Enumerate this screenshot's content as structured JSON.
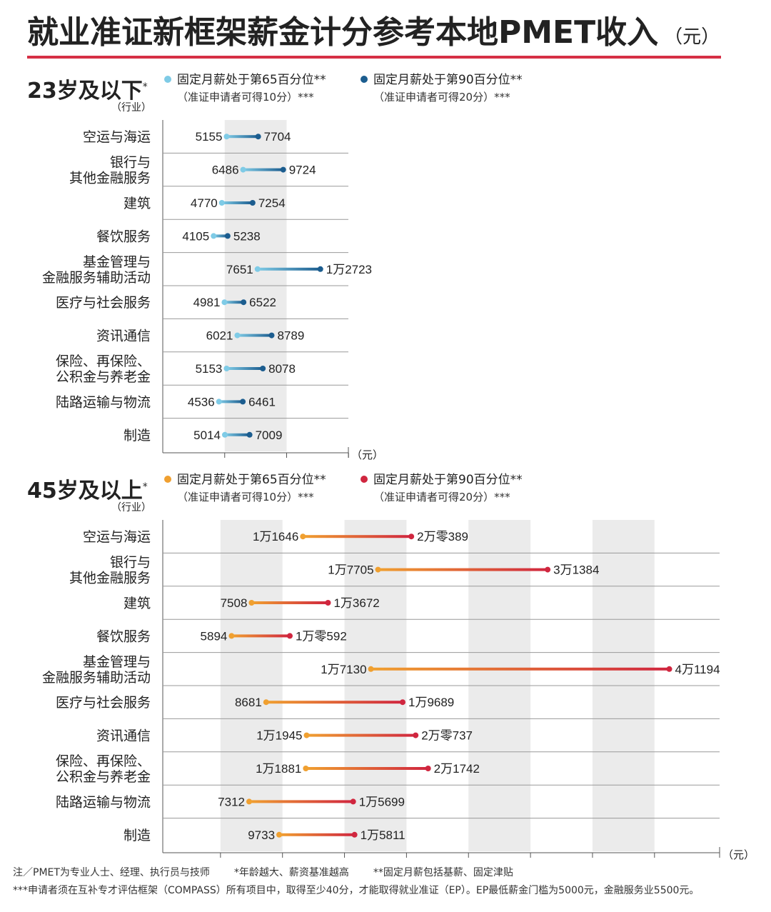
{
  "title": "就业准证新框架薪金计分参考本地PMET收入",
  "title_unit": "（元）",
  "colors": {
    "accent_red": "#d62f45",
    "young_p65": "#7fcbe6",
    "young_p90": "#1c5d8f",
    "senior_p65": "#f0a030",
    "senior_p90": "#d0263f",
    "shade": "#ebebeb",
    "grid": "#999999"
  },
  "legend_young": {
    "p65_label": "固定月薪处于第65百分位**",
    "p65_note": "（准证申请者可得10分）***",
    "p90_label": "固定月薪处于第90百分位**",
    "p90_note": "（准证申请者可得20分）***"
  },
  "legend_senior": {
    "p65_label": "固定月薪处于第65百分位**",
    "p65_note": "（准证申请者可得10分）***",
    "p90_label": "固定月薪处于第90百分位**",
    "p90_note": "（准证申请者可得20分）***"
  },
  "chart_data": [
    {
      "type": "dumbbell",
      "title": "23岁及以下",
      "title_mark": "*",
      "ylabel": "（行业）",
      "xlabel": "（元）",
      "series_names": [
        "固定月薪处于第65百分位",
        "固定月薪处于第90百分位"
      ],
      "rows": [
        {
          "industry": [
            "空运与海运"
          ],
          "p65": 5155,
          "p90": 7704,
          "p65_label": "5155",
          "p90_label": "7704"
        },
        {
          "industry": [
            "银行与",
            "其他金融服务"
          ],
          "p65": 6486,
          "p90": 9724,
          "p65_label": "6486",
          "p90_label": "9724"
        },
        {
          "industry": [
            "建筑"
          ],
          "p65": 4770,
          "p90": 7254,
          "p65_label": "4770",
          "p90_label": "7254"
        },
        {
          "industry": [
            "餐饮服务"
          ],
          "p65": 4105,
          "p90": 5238,
          "p65_label": "4105",
          "p90_label": "5238"
        },
        {
          "industry": [
            "基金管理与",
            "金融服务辅助活动"
          ],
          "p65": 7651,
          "p90": 12723,
          "p65_label": "7651",
          "p90_label": "1万2723"
        },
        {
          "industry": [
            "医疗与社会服务"
          ],
          "p65": 4981,
          "p90": 6522,
          "p65_label": "4981",
          "p90_label": "6522"
        },
        {
          "industry": [
            "资讯通信"
          ],
          "p65": 6021,
          "p90": 8789,
          "p65_label": "6021",
          "p90_label": "8789"
        },
        {
          "industry": [
            "保险、再保险、",
            "公积金与养老金"
          ],
          "p65": 5153,
          "p90": 8078,
          "p65_label": "5153",
          "p90_label": "8078"
        },
        {
          "industry": [
            "陆路运输与物流"
          ],
          "p65": 4536,
          "p90": 6461,
          "p65_label": "4536",
          "p90_label": "6461"
        },
        {
          "industry": [
            "制造"
          ],
          "p65": 5014,
          "p90": 7009,
          "p65_label": "5014",
          "p90_label": "7009"
        }
      ]
    },
    {
      "type": "dumbbell",
      "title": "45岁及以上",
      "title_mark": "*",
      "ylabel": "（行业）",
      "xlabel": "（元）",
      "series_names": [
        "固定月薪处于第65百分位",
        "固定月薪处于第90百分位"
      ],
      "rows": [
        {
          "industry": [
            "空运与海运"
          ],
          "p65": 11646,
          "p90": 20389,
          "p65_label": "1万1646",
          "p90_label": "2万零389"
        },
        {
          "industry": [
            "银行与",
            "其他金融服务"
          ],
          "p65": 17705,
          "p90": 31384,
          "p65_label": "1万7705",
          "p90_label": "3万1384"
        },
        {
          "industry": [
            "建筑"
          ],
          "p65": 7508,
          "p90": 13672,
          "p65_label": "7508",
          "p90_label": "1万3672"
        },
        {
          "industry": [
            "餐饮服务"
          ],
          "p65": 5894,
          "p90": 10592,
          "p65_label": "5894",
          "p90_label": "1万零592"
        },
        {
          "industry": [
            "基金管理与",
            "金融服务辅助活动"
          ],
          "p65": 17130,
          "p90": 41194,
          "p65_label": "1万7130",
          "p90_label": "4万1194"
        },
        {
          "industry": [
            "医疗与社会服务"
          ],
          "p65": 8681,
          "p90": 19689,
          "p65_label": "8681",
          "p90_label": "1万9689"
        },
        {
          "industry": [
            "资讯通信"
          ],
          "p65": 11945,
          "p90": 20737,
          "p65_label": "1万1945",
          "p90_label": "2万零737"
        },
        {
          "industry": [
            "保险、再保险、",
            "公积金与养老金"
          ],
          "p65": 11881,
          "p90": 21742,
          "p65_label": "1万1881",
          "p90_label": "2万1742"
        },
        {
          "industry": [
            "陆路运输与物流"
          ],
          "p65": 7312,
          "p90": 15699,
          "p65_label": "7312",
          "p90_label": "1万5699"
        },
        {
          "industry": [
            "制造"
          ],
          "p65": 9733,
          "p90": 15811,
          "p65_label": "9733",
          "p90_label": "1万5811"
        }
      ]
    }
  ],
  "footnotes": {
    "line1_a": "注／PMET为专业人士、经理、执行员与技师",
    "line1_b": "*年龄越大、薪资基准越高",
    "line1_c": "**固定月薪包括基薪、固定津贴",
    "line2": "***申请者须在互补专才评估框架（COMPASS）所有项目中，取得至少40分，才能取得就业准证（EP）。EP最低薪金门槛为5000元，金融服务业5500元。"
  }
}
